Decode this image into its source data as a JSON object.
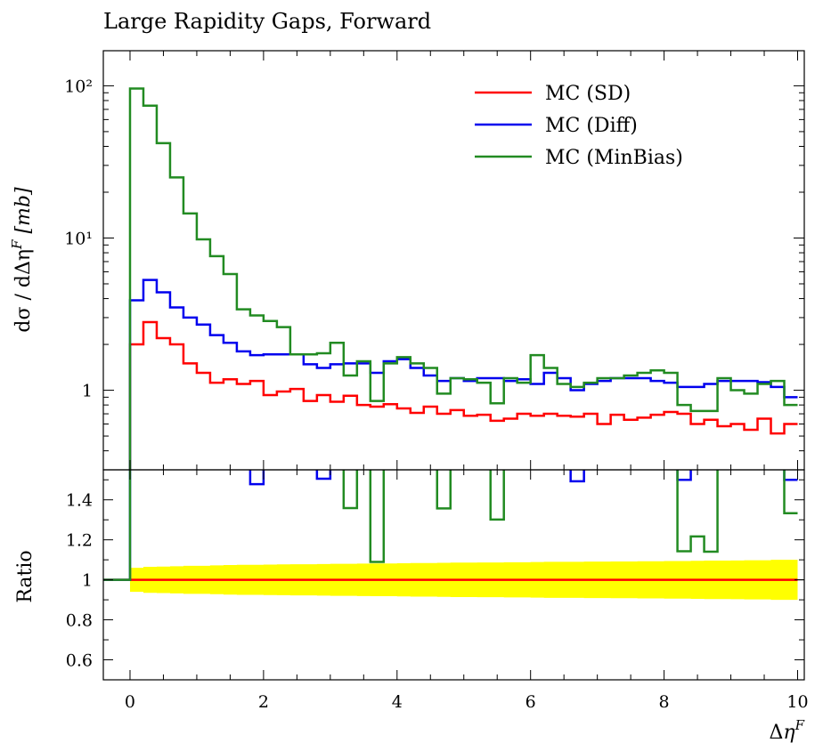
{
  "chart_data": {
    "type": "line",
    "title": "Large Rapidity Gaps, Forward",
    "xlabel": "Δη^F",
    "ylabel": "dσ / dΔη^F [mb]",
    "xlim": [
      -0.4,
      10.1
    ],
    "ylim": [
      0.3,
      170
    ],
    "yscale": "log",
    "legend_position": "top-right",
    "bin_edges": [
      0,
      0.2,
      0.4,
      0.6,
      0.8,
      1.0,
      1.2,
      1.4,
      1.6,
      1.8,
      2.0,
      2.2,
      2.4,
      2.6,
      2.8,
      3.0,
      3.2,
      3.4,
      3.6,
      3.8,
      4.0,
      4.2,
      4.4,
      4.6,
      4.8,
      5.0,
      5.2,
      5.4,
      5.6,
      5.8,
      6.0,
      6.2,
      6.4,
      6.6,
      6.8,
      7.0,
      7.2,
      7.4,
      7.6,
      7.8,
      8.0,
      8.2,
      8.4,
      8.6,
      8.8,
      9.0,
      9.2,
      9.4,
      9.6,
      9.8,
      10.0
    ],
    "series": [
      {
        "name": "MC (SD)",
        "color": "#ff0000",
        "values": [
          2.0,
          2.8,
          2.2,
          2.0,
          1.5,
          1.3,
          1.12,
          1.18,
          1.1,
          1.15,
          0.93,
          0.98,
          1.02,
          0.85,
          0.93,
          0.84,
          0.92,
          0.8,
          0.78,
          0.81,
          0.76,
          0.71,
          0.78,
          0.7,
          0.74,
          0.68,
          0.69,
          0.63,
          0.65,
          0.7,
          0.68,
          0.7,
          0.68,
          0.67,
          0.7,
          0.6,
          0.69,
          0.64,
          0.66,
          0.69,
          0.72,
          0.7,
          0.6,
          0.64,
          0.58,
          0.6,
          0.55,
          0.65,
          0.52,
          0.6
        ]
      },
      {
        "name": "MC (Diff)",
        "color": "#0000ee",
        "values": [
          3.9,
          5.3,
          4.4,
          3.5,
          3.0,
          2.7,
          2.3,
          2.05,
          1.8,
          1.7,
          1.72,
          1.72,
          1.72,
          1.48,
          1.4,
          1.48,
          1.5,
          1.5,
          1.3,
          1.55,
          1.6,
          1.4,
          1.25,
          1.15,
          1.2,
          1.15,
          1.2,
          1.2,
          1.15,
          1.18,
          1.1,
          1.3,
          1.2,
          1.0,
          1.1,
          1.15,
          1.2,
          1.2,
          1.2,
          1.15,
          1.12,
          1.05,
          1.05,
          1.1,
          1.15,
          1.15,
          1.15,
          1.13,
          1.05,
          0.9
        ]
      },
      {
        "name": "MC (MinBias)",
        "color": "#228b22",
        "values": [
          96,
          74,
          42,
          25,
          14.5,
          9.8,
          7.6,
          5.8,
          3.4,
          3.1,
          2.85,
          2.6,
          1.72,
          1.72,
          1.75,
          2.05,
          1.25,
          1.55,
          0.85,
          1.5,
          1.65,
          1.5,
          1.4,
          0.95,
          1.2,
          1.18,
          1.12,
          0.82,
          1.2,
          1.12,
          1.7,
          1.4,
          1.1,
          1.05,
          1.12,
          1.2,
          1.2,
          1.25,
          1.3,
          1.35,
          1.3,
          0.8,
          0.73,
          0.73,
          1.2,
          1.0,
          0.95,
          1.1,
          1.15,
          0.8
        ]
      }
    ],
    "ratio": {
      "ylabel": "Ratio",
      "ylim": [
        0.5,
        1.55
      ],
      "reference": 1.0,
      "band_color": "#ffff00",
      "band_halfwidth": [
        0.06,
        0.065,
        0.066,
        0.068,
        0.07,
        0.07,
        0.072,
        0.074,
        0.075,
        0.075,
        0.076,
        0.077,
        0.078,
        0.078,
        0.079,
        0.08,
        0.08,
        0.081,
        0.082,
        0.082,
        0.083,
        0.084,
        0.084,
        0.085,
        0.086,
        0.086,
        0.087,
        0.087,
        0.088,
        0.088,
        0.089,
        0.09,
        0.09,
        0.09,
        0.091,
        0.091,
        0.092,
        0.092,
        0.093,
        0.093,
        0.094,
        0.094,
        0.095,
        0.096,
        0.096,
        0.097,
        0.098,
        0.098,
        0.1,
        0.1
      ]
    },
    "x_ticks": [
      "0",
      "2",
      "4",
      "6",
      "8",
      "10"
    ],
    "y_ticks": [
      "1",
      "10¹",
      "10²"
    ],
    "ratio_ticks": [
      "0.6",
      "0.8",
      "1",
      "1.2",
      "1.4"
    ]
  }
}
